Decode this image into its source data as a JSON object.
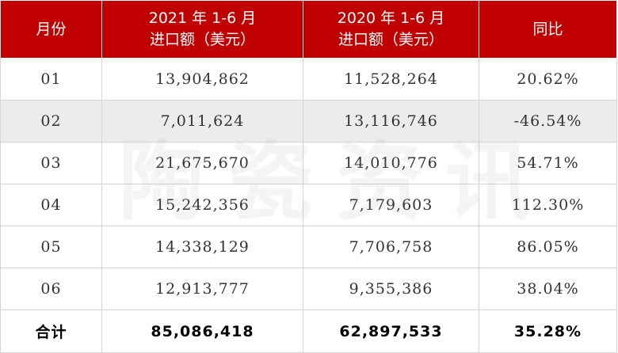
{
  "table": {
    "headers": [
      {
        "line1": "月份",
        "line2": ""
      },
      {
        "line1": "2021 年 1-6 月",
        "line2": "进口额（美元）"
      },
      {
        "line1": "2020 年 1-6 月",
        "line2": "进口额（美元）"
      },
      {
        "line1": "同比",
        "line2": ""
      }
    ],
    "rows": [
      {
        "month": "01",
        "y2021": "13,904,862",
        "y2020": "11,528,264",
        "yoy": "20.62%"
      },
      {
        "month": "02",
        "y2021": "7,011,624",
        "y2020": "13,116,746",
        "yoy": "-46.54%"
      },
      {
        "month": "03",
        "y2021": "21,675,670",
        "y2020": "14,010,776",
        "yoy": "54.71%"
      },
      {
        "month": "04",
        "y2021": "15,242,356",
        "y2020": "7,179,603",
        "yoy": "112.30%"
      },
      {
        "month": "05",
        "y2021": "14,338,129",
        "y2020": "7,706,758",
        "yoy": "86.05%"
      },
      {
        "month": "06",
        "y2021": "12,913,777",
        "y2020": "9,355,386",
        "yoy": "38.04%"
      }
    ],
    "total": {
      "label": "合计",
      "y2021": "85,086,418",
      "y2020": "62,897,533",
      "yoy": "35.28%"
    }
  },
  "watermark": {
    "chars": [
      "陶",
      "瓷",
      "资",
      "讯"
    ]
  },
  "colors": {
    "header_bg": "#c00000",
    "header_text": "#ffffff",
    "shaded_row": "#ececec",
    "border": "#d4d4d4"
  }
}
